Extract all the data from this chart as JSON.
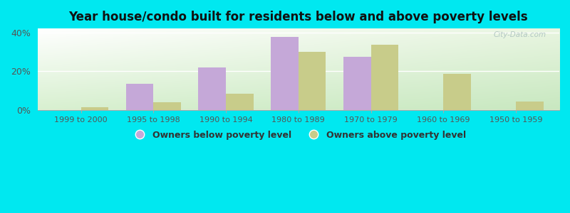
{
  "title": "Year house/condo built for residents below and above poverty levels",
  "categories": [
    "1999 to 2000",
    "1995 to 1998",
    "1990 to 1994",
    "1980 to 1989",
    "1970 to 1979",
    "1960 to 1969",
    "1950 to 1959"
  ],
  "below_poverty": [
    0.0,
    13.5,
    22.0,
    37.5,
    27.5,
    0.0,
    0.0
  ],
  "above_poverty": [
    1.5,
    4.0,
    8.5,
    30.0,
    33.5,
    18.5,
    4.5
  ],
  "below_color": "#c5a8d8",
  "above_color": "#c8cc8a",
  "ylim": [
    0,
    42
  ],
  "yticks": [
    0,
    20,
    40
  ],
  "ytick_labels": [
    "0%",
    "20%",
    "40%"
  ],
  "outer_bg": "#00e8f0",
  "legend_below": "Owners below poverty level",
  "legend_above": "Owners above poverty level",
  "bar_width": 0.38,
  "watermark": "City-Data.com"
}
